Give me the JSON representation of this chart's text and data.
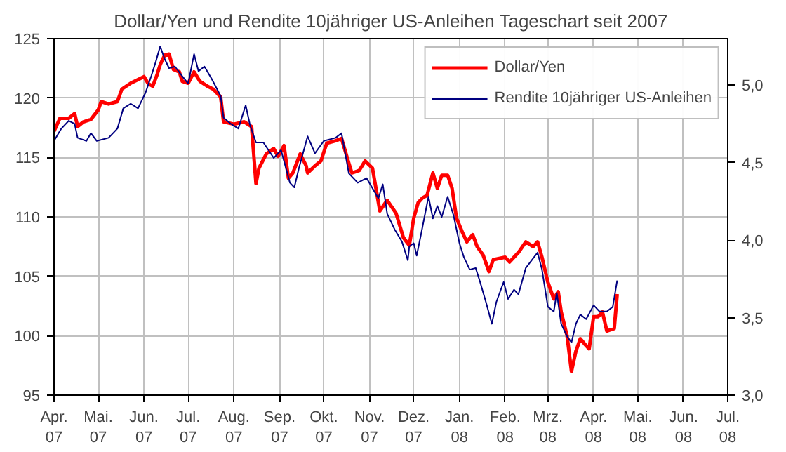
{
  "chart_data": {
    "type": "line",
    "title": "Dollar/Yen und Rendite 10jähriger US-Anleihen Tageschart seit 2007",
    "xlim": [
      "2007-04-01",
      "2008-07-01"
    ],
    "xticks": [
      {
        "value": "2007-04-01",
        "label": "Apr.\n07"
      },
      {
        "value": "2007-05-01",
        "label": "Mai.\n07"
      },
      {
        "value": "2007-06-01",
        "label": "Jun.\n07"
      },
      {
        "value": "2007-07-01",
        "label": "Jul.\n07"
      },
      {
        "value": "2007-08-01",
        "label": "Aug.\n07"
      },
      {
        "value": "2007-09-01",
        "label": "Sep.\n07"
      },
      {
        "value": "2007-10-01",
        "label": "Okt.\n07"
      },
      {
        "value": "2007-11-01",
        "label": "Nov.\n07"
      },
      {
        "value": "2007-12-01",
        "label": "Dez.\n07"
      },
      {
        "value": "2008-01-01",
        "label": "Jan.\n08"
      },
      {
        "value": "2008-02-01",
        "label": "Feb.\n08"
      },
      {
        "value": "2008-03-01",
        "label": "Mrz.\n08"
      },
      {
        "value": "2008-04-01",
        "label": "Apr.\n08"
      },
      {
        "value": "2008-05-01",
        "label": "Mai.\n08"
      },
      {
        "value": "2008-06-01",
        "label": "Jun.\n08"
      },
      {
        "value": "2008-07-01",
        "label": "Jul.\n08"
      }
    ],
    "ylim": [
      95,
      125
    ],
    "yticks": [
      95,
      100,
      105,
      110,
      115,
      120,
      125
    ],
    "y2lim": [
      3.0,
      5.3
    ],
    "y2ticks": [
      {
        "value": 3.0,
        "label": "3,0"
      },
      {
        "value": 3.5,
        "label": "3,5"
      },
      {
        "value": 4.0,
        "label": "4,0"
      },
      {
        "value": 4.5,
        "label": "4,5"
      },
      {
        "value": 5.0,
        "label": "5,0"
      }
    ],
    "grid": true,
    "legend": "top right",
    "series": [
      {
        "name": "Dollar/Yen",
        "color": "#ff0000",
        "x": [
          "2007-04-01",
          "2007-04-05",
          "2007-04-11",
          "2007-04-15",
          "2007-04-17",
          "2007-04-21",
          "2007-04-26",
          "2007-05-01",
          "2007-05-03",
          "2007-05-08",
          "2007-05-14",
          "2007-05-17",
          "2007-05-23",
          "2007-06-01",
          "2007-06-04",
          "2007-06-07",
          "2007-06-10",
          "2007-06-12",
          "2007-06-15",
          "2007-06-18",
          "2007-06-21",
          "2007-06-25",
          "2007-06-27",
          "2007-07-01",
          "2007-07-05",
          "2007-07-09",
          "2007-07-14",
          "2007-07-18",
          "2007-07-23",
          "2007-07-25",
          "2007-08-01",
          "2007-08-08",
          "2007-08-13",
          "2007-08-16",
          "2007-08-18",
          "2007-08-23",
          "2007-08-28",
          "2007-08-31",
          "2007-09-04",
          "2007-09-07",
          "2007-09-10",
          "2007-09-15",
          "2007-09-19",
          "2007-09-20",
          "2007-09-25",
          "2007-09-29",
          "2007-10-03",
          "2007-10-09",
          "2007-10-13",
          "2007-10-18",
          "2007-10-20",
          "2007-10-25",
          "2007-10-29",
          "2007-11-03",
          "2007-11-08",
          "2007-11-13",
          "2007-11-19",
          "2007-11-24",
          "2007-11-28",
          "2007-12-01",
          "2007-12-04",
          "2007-12-07",
          "2007-12-10",
          "2007-12-14",
          "2007-12-17",
          "2007-12-20",
          "2007-12-24",
          "2007-12-27",
          "2007-12-30",
          "2008-01-03",
          "2008-01-06",
          "2008-01-10",
          "2008-01-13",
          "2008-01-17",
          "2008-01-21",
          "2008-01-24",
          "2008-02-01",
          "2008-02-04",
          "2008-02-07",
          "2008-02-10",
          "2008-02-15",
          "2008-02-20",
          "2008-02-23",
          "2008-02-26",
          "2008-03-01",
          "2008-03-05",
          "2008-03-08",
          "2008-03-10",
          "2008-03-14",
          "2008-03-17",
          "2008-03-20",
          "2008-03-23",
          "2008-03-26",
          "2008-03-29",
          "2008-04-01",
          "2008-04-04",
          "2008-04-07",
          "2008-04-10",
          "2008-04-15",
          "2008-04-17"
        ],
        "values": [
          117.2,
          118.3,
          118.3,
          118.7,
          117.6,
          118.0,
          118.2,
          119.0,
          119.7,
          119.5,
          119.7,
          120.75,
          121.25,
          121.8,
          121.2,
          121.0,
          122.0,
          122.8,
          123.6,
          123.7,
          122.4,
          122.2,
          121.4,
          121.25,
          122.2,
          121.4,
          121.0,
          120.75,
          120.1,
          118.0,
          117.8,
          118.0,
          117.6,
          112.8,
          114.1,
          115.3,
          115.75,
          115.1,
          116.0,
          113.25,
          113.7,
          115.3,
          114.3,
          113.7,
          114.3,
          114.7,
          116.2,
          116.4,
          116.6,
          114.5,
          113.7,
          113.9,
          114.7,
          114.1,
          110.5,
          111.4,
          110.3,
          108.25,
          107.6,
          109.9,
          111.2,
          111.6,
          111.8,
          113.7,
          112.4,
          113.5,
          113.5,
          112.4,
          109.9,
          108.7,
          107.9,
          108.5,
          107.5,
          106.8,
          105.4,
          106.4,
          106.6,
          106.2,
          106.6,
          107.0,
          107.9,
          107.5,
          107.9,
          106.6,
          104.5,
          103.1,
          103.7,
          102.0,
          100.0,
          97.0,
          98.7,
          99.75,
          99.3,
          98.9,
          101.6,
          101.6,
          102.0,
          100.4,
          100.6,
          103.5
        ]
      },
      {
        "name": "Rendite 10jähriger US-Anleihen",
        "color": "#000080",
        "axis": "y2",
        "x": [
          "2007-04-01",
          "2007-04-06",
          "2007-04-11",
          "2007-04-15",
          "2007-04-17",
          "2007-04-23",
          "2007-04-26",
          "2007-04-30",
          "2007-05-08",
          "2007-05-14",
          "2007-05-18",
          "2007-05-23",
          "2007-05-28",
          "2007-06-02",
          "2007-06-06",
          "2007-06-09",
          "2007-06-12",
          "2007-06-15",
          "2007-06-18",
          "2007-06-22",
          "2007-06-26",
          "2007-07-01",
          "2007-07-05",
          "2007-07-08",
          "2007-07-12",
          "2007-07-17",
          "2007-07-23",
          "2007-07-25",
          "2007-07-30",
          "2007-08-04",
          "2007-08-09",
          "2007-08-12",
          "2007-08-16",
          "2007-08-21",
          "2007-08-28",
          "2007-09-02",
          "2007-09-08",
          "2007-09-11",
          "2007-09-14",
          "2007-09-20",
          "2007-09-25",
          "2007-10-01",
          "2007-10-09",
          "2007-10-13",
          "2007-10-18",
          "2007-10-24",
          "2007-10-30",
          "2007-11-07",
          "2007-11-10",
          "2007-11-13",
          "2007-11-18",
          "2007-11-23",
          "2007-11-27",
          "2007-11-28",
          "2007-12-01",
          "2007-12-03",
          "2007-12-06",
          "2007-12-11",
          "2007-12-14",
          "2007-12-17",
          "2007-12-20",
          "2007-12-24",
          "2007-12-28",
          "2008-01-01",
          "2008-01-04",
          "2008-01-08",
          "2008-01-12",
          "2008-01-15",
          "2008-01-19",
          "2008-01-23",
          "2008-01-26",
          "2008-01-31",
          "2008-02-03",
          "2008-02-07",
          "2008-02-10",
          "2008-02-15",
          "2008-02-19",
          "2008-02-23",
          "2008-02-26",
          "2008-03-01",
          "2008-03-05",
          "2008-03-07",
          "2008-03-10",
          "2008-03-14",
          "2008-03-17",
          "2008-03-20",
          "2008-03-23",
          "2008-03-27",
          "2008-04-01",
          "2008-04-05",
          "2008-04-10",
          "2008-04-14",
          "2008-04-17"
        ],
        "values": [
          4.64,
          4.72,
          4.77,
          4.75,
          4.66,
          4.64,
          4.69,
          4.64,
          4.66,
          4.72,
          4.85,
          4.88,
          4.85,
          4.95,
          5.06,
          5.15,
          5.25,
          5.17,
          5.11,
          5.12,
          5.07,
          5.01,
          5.2,
          5.09,
          5.12,
          5.04,
          4.93,
          4.79,
          4.75,
          4.72,
          4.87,
          4.74,
          4.63,
          4.63,
          4.53,
          4.58,
          4.37,
          4.34,
          4.46,
          4.67,
          4.56,
          4.64,
          4.66,
          4.69,
          4.43,
          4.37,
          4.4,
          4.27,
          4.36,
          4.17,
          4.07,
          3.99,
          3.87,
          3.96,
          3.98,
          3.9,
          4.04,
          4.28,
          4.14,
          4.22,
          4.15,
          4.28,
          4.16,
          3.98,
          3.89,
          3.81,
          3.82,
          3.73,
          3.6,
          3.46,
          3.6,
          3.73,
          3.62,
          3.68,
          3.65,
          3.82,
          3.87,
          3.92,
          3.81,
          3.57,
          3.54,
          3.66,
          3.46,
          3.38,
          3.34,
          3.46,
          3.52,
          3.49,
          3.58,
          3.54,
          3.54,
          3.57,
          3.74
        ]
      }
    ]
  }
}
